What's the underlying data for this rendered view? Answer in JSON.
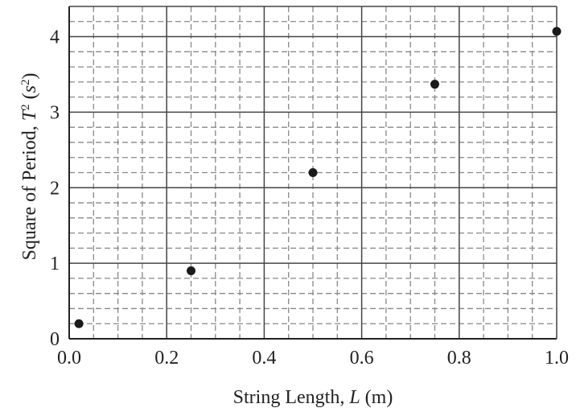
{
  "chart_data": {
    "type": "scatter",
    "title": "",
    "xlabel": {
      "prefix": "String Length, ",
      "symbol": "L",
      "unit": " (m)"
    },
    "ylabel": {
      "prefix": "Square of Period, ",
      "symbol": "T",
      "symbol_sup": "2",
      "unit_open": " (",
      "unit": "s",
      "unit_sup": "2",
      "unit_close": ")"
    },
    "xlim": [
      0,
      1.0
    ],
    "ylim": [
      0,
      4.4
    ],
    "x_ticks": [
      0.0,
      0.2,
      0.4,
      0.6,
      0.8,
      1.0
    ],
    "x_tick_labels": [
      "0.0",
      "0.2",
      "0.4",
      "0.6",
      "0.8",
      "1.0"
    ],
    "y_ticks": [
      0,
      1,
      2,
      3,
      4
    ],
    "y_tick_labels": [
      "0",
      "1",
      "2",
      "3",
      "4"
    ],
    "grid": true,
    "major_grid_x_step": 0.2,
    "major_grid_y_step": 1.0,
    "minor_grid_x_step": 0.05,
    "minor_grid_y_step": 0.2,
    "marker_color": "#1a1a1a",
    "grid_color_major": "#444444",
    "grid_color_minor": "#888888",
    "series": [
      {
        "points": [
          {
            "x": 0.02,
            "y": 0.2
          },
          {
            "x": 0.25,
            "y": 0.9
          },
          {
            "x": 0.5,
            "y": 2.2
          },
          {
            "x": 0.75,
            "y": 3.37
          },
          {
            "x": 1.0,
            "y": 4.07
          }
        ]
      }
    ]
  }
}
